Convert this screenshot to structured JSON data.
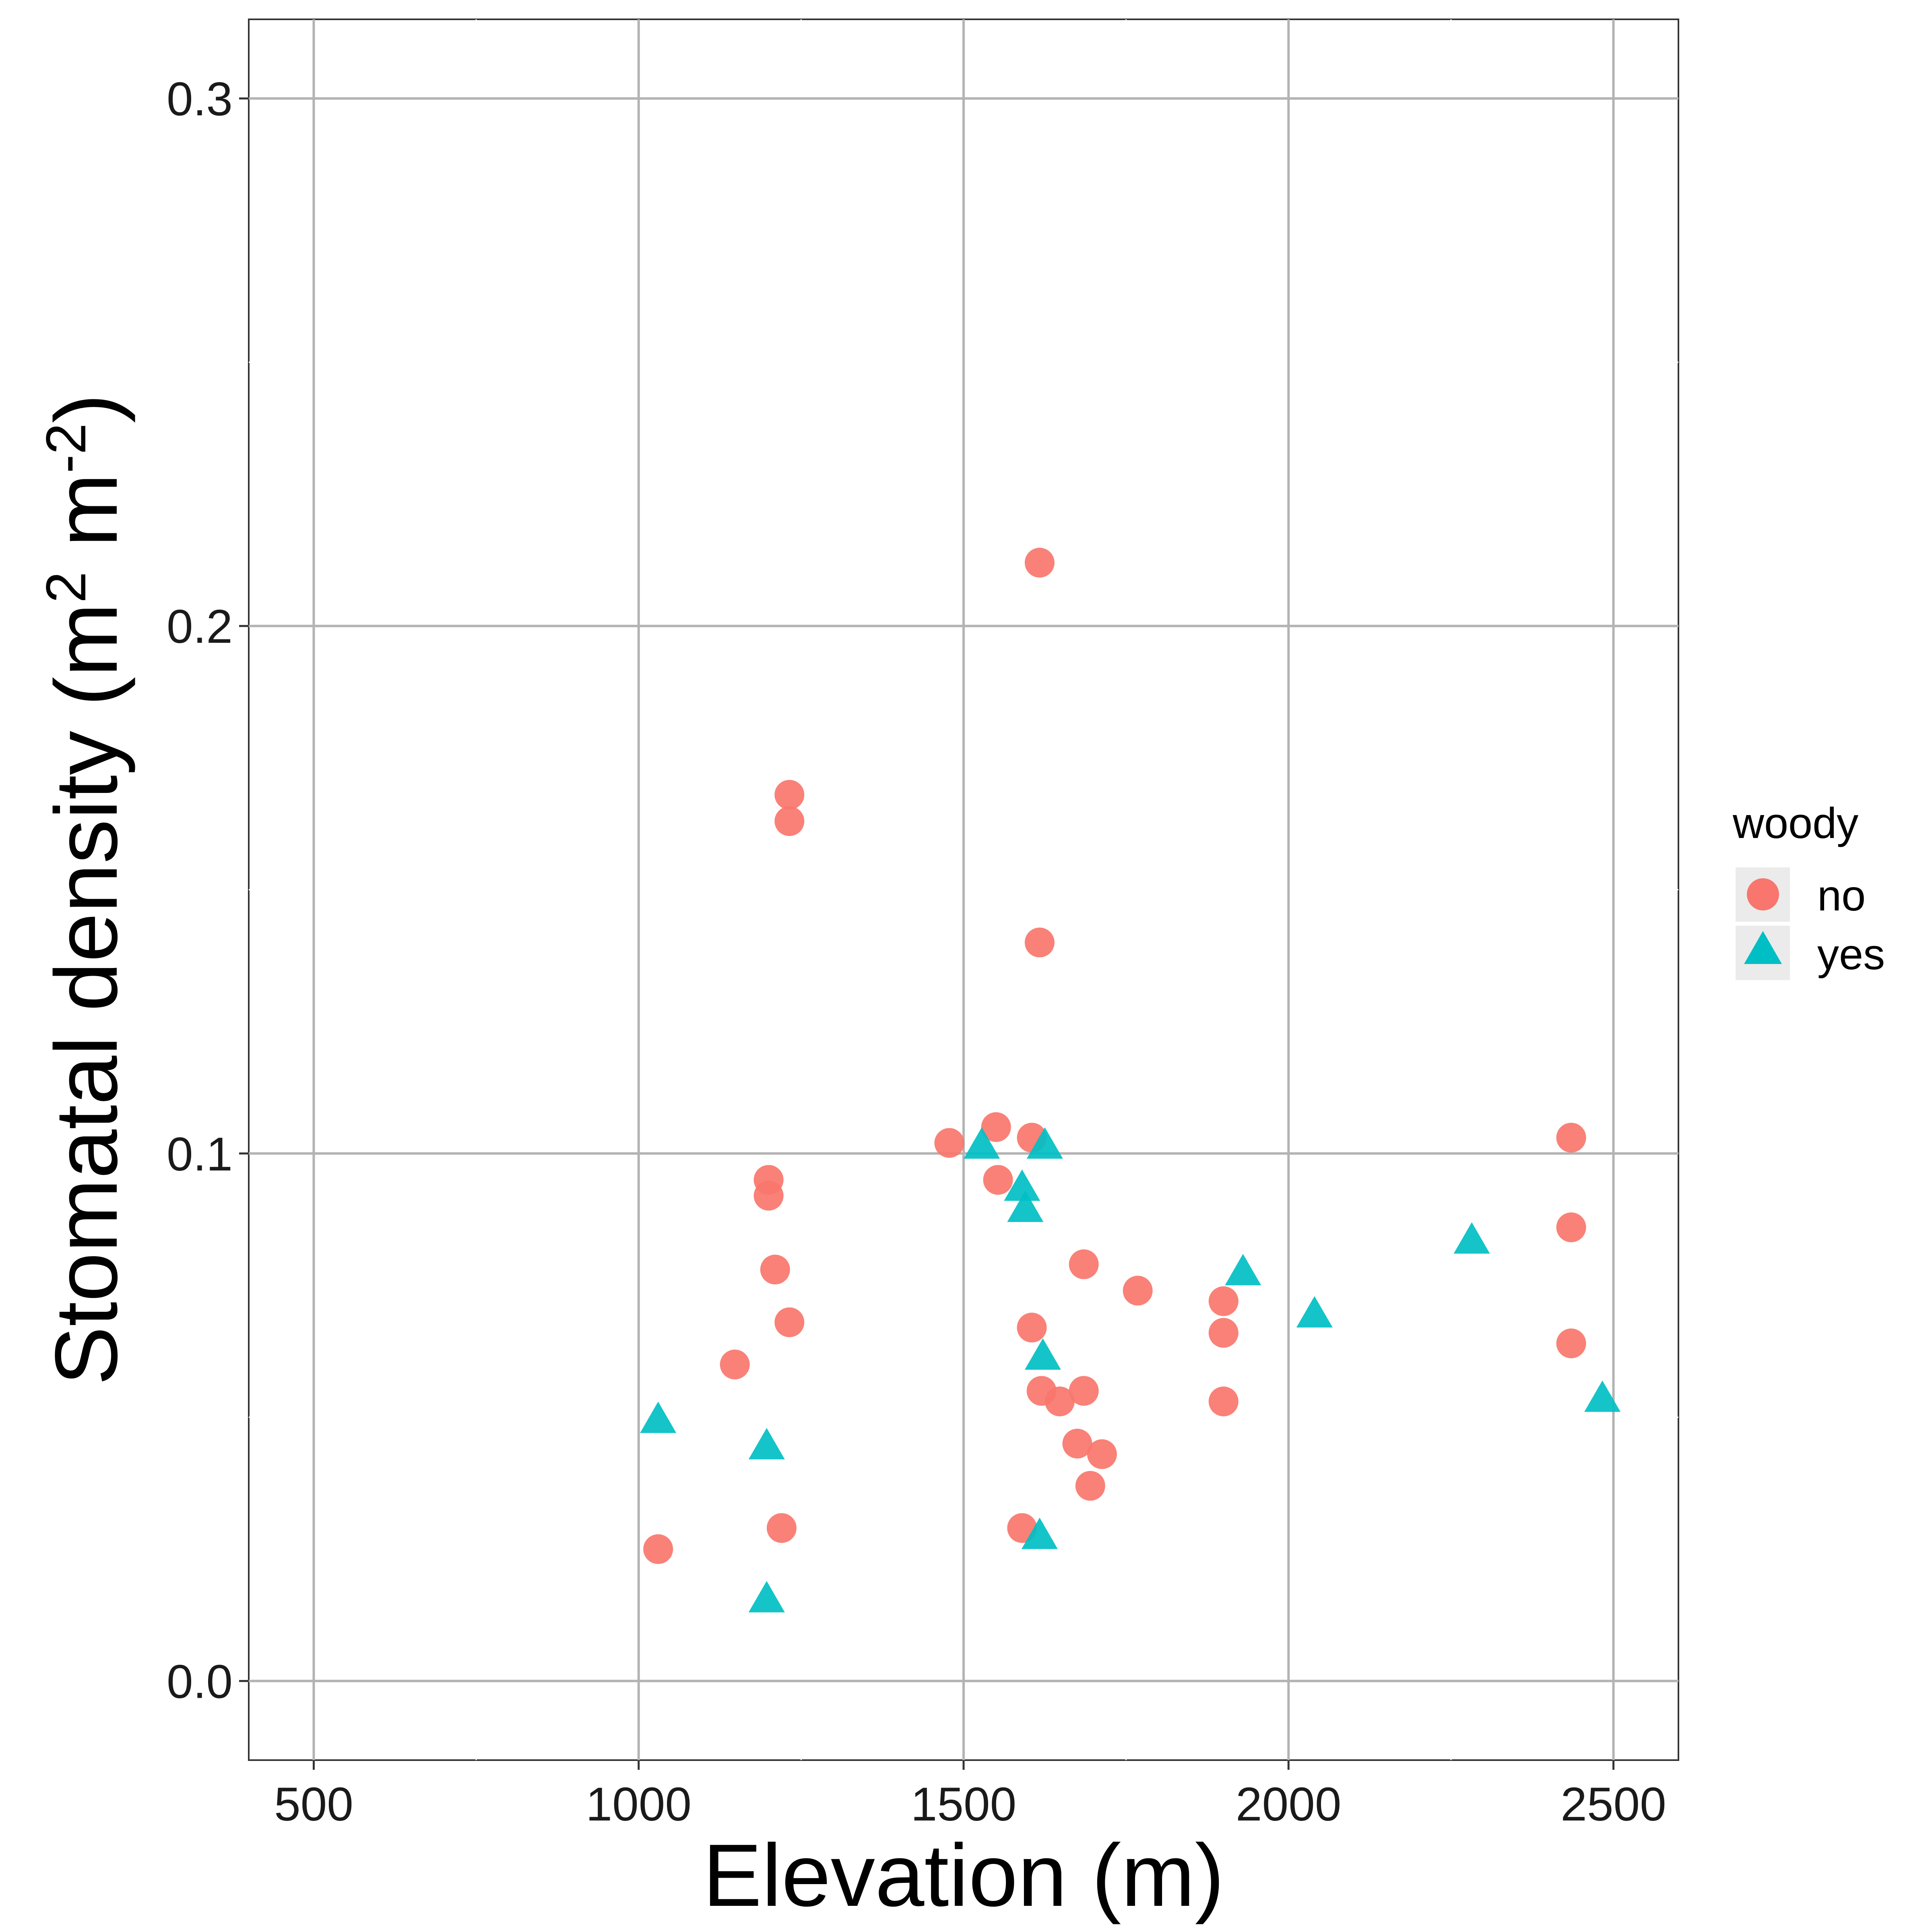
{
  "chart_data": {
    "type": "scatter",
    "title": "",
    "xlabel": "Elevation (m)",
    "ylabel": {
      "prefix": "Stomatal density (m",
      "sup1": "2",
      "middle": " m",
      "sup2": "-2",
      "suffix": ")"
    },
    "xlim": [
      400,
      2600
    ],
    "ylim": [
      -0.015,
      0.315
    ],
    "x_ticks": [
      500,
      1000,
      1500,
      2000,
      2500
    ],
    "x_tick_labels": [
      "500",
      "1000",
      "1500",
      "2000",
      "2500"
    ],
    "y_ticks": [
      0.0,
      0.1,
      0.2,
      0.3
    ],
    "y_tick_labels": [
      "0.0",
      "0.1",
      "0.2",
      "0.3"
    ],
    "grid": true,
    "legend": {
      "title": "woody",
      "position": "right",
      "entries": [
        {
          "label": "no",
          "shape": "circle",
          "color": "#F8766D"
        },
        {
          "label": "yes",
          "shape": "triangle",
          "color": "#00BFC4"
        }
      ]
    },
    "series": [
      {
        "name": "no",
        "shape": "circle",
        "color": "#F8766D",
        "points": [
          [
            1617,
            0.212
          ],
          [
            1232,
            0.168
          ],
          [
            1232,
            0.163
          ],
          [
            1617,
            0.14
          ],
          [
            1550,
            0.105
          ],
          [
            1605,
            0.103
          ],
          [
            1478,
            0.102
          ],
          [
            2435,
            0.103
          ],
          [
            1200,
            0.095
          ],
          [
            1200,
            0.092
          ],
          [
            1553,
            0.095
          ],
          [
            2435,
            0.086
          ],
          [
            1210,
            0.078
          ],
          [
            1685,
            0.079
          ],
          [
            1768,
            0.074
          ],
          [
            1900,
            0.072
          ],
          [
            1232,
            0.068
          ],
          [
            1605,
            0.067
          ],
          [
            1900,
            0.066
          ],
          [
            2435,
            0.064
          ],
          [
            1148,
            0.06
          ],
          [
            1620,
            0.055
          ],
          [
            1648,
            0.053
          ],
          [
            1685,
            0.055
          ],
          [
            1900,
            0.053
          ],
          [
            1675,
            0.045
          ],
          [
            1713,
            0.043
          ],
          [
            1695,
            0.037
          ],
          [
            1220,
            0.029
          ],
          [
            1590,
            0.029
          ],
          [
            1030,
            0.025
          ]
        ]
      },
      {
        "name": "yes",
        "shape": "triangle",
        "color": "#00BFC4",
        "points": [
          [
            1528,
            0.101
          ],
          [
            1625,
            0.101
          ],
          [
            1590,
            0.093
          ],
          [
            1595,
            0.089
          ],
          [
            1930,
            0.077
          ],
          [
            2282,
            0.083
          ],
          [
            2040,
            0.069
          ],
          [
            1622,
            0.061
          ],
          [
            1030,
            0.049
          ],
          [
            1197,
            0.044
          ],
          [
            2483,
            0.053
          ],
          [
            1617,
            0.027
          ],
          [
            1197,
            0.015
          ]
        ]
      }
    ]
  }
}
